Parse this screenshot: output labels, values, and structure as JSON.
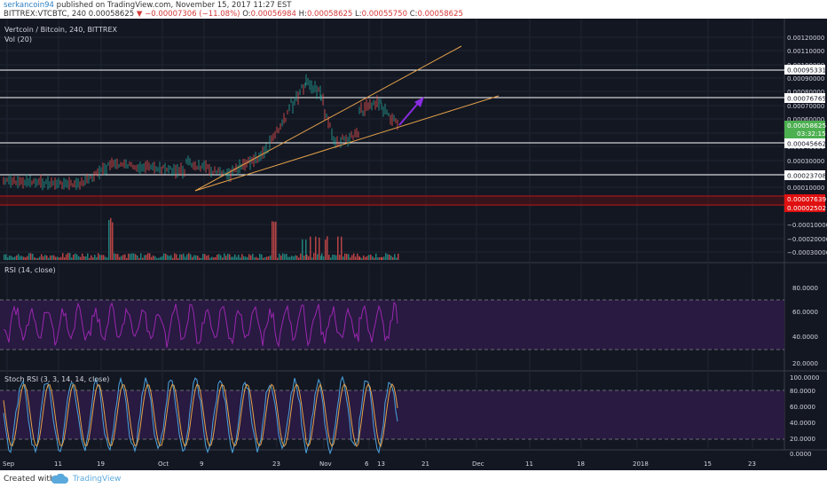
{
  "header": {
    "user": "serkancoin94",
    "published": "published on TradingView.com, November 15, 2017 11:27 EST",
    "symbol": "BITTREX:VTCBTC, 240",
    "price": "0.00058625",
    "change": "−0.00007306 (−11.08%)",
    "o_label": "O:",
    "o_value": "0.00056984",
    "h_label": "H:",
    "h_value": "0.00058625",
    "l_label": "L:",
    "l_value": "0.00055750",
    "c_label": "C:",
    "c_value": "0.00058625"
  },
  "chart_title": "Vertcoin / Bitcoin, 240, BITTREX",
  "vol_label": "Vol (20)",
  "rsi_label": "RSI (14, close)",
  "stoch_label": "Stoch RSI (3, 3, 14, 14, close)",
  "price_axis": [
    "0.00120000",
    "0.00110000",
    "0.00100000",
    "0.00090000",
    "0.00080000",
    "0.00070000",
    "0.00060000",
    "0.00050000",
    "0.00040000",
    "0.00030000",
    "0.00020000",
    "0.00010000",
    "−0.00010000",
    "−0.00020000",
    "−0.00030000"
  ],
  "level_labels": [
    "0.00095331",
    "0.00076765",
    "0.00045662",
    "0.00023708"
  ],
  "current_price": "0.00058625",
  "countdown": "03:32:15",
  "red_labels": [
    "0.00007639",
    "0.00002502"
  ],
  "rsi_axis": [
    "80.0000",
    "60.0000",
    "40.0000",
    "20.0000"
  ],
  "stoch_axis": [
    "100.0000",
    "80.0000",
    "60.0000",
    "40.0000",
    "20.0000",
    "0.0000"
  ],
  "time_axis": [
    "Sep",
    "11",
    "19",
    "Oct",
    "9",
    "23",
    "Nov",
    "6",
    "13",
    "21",
    "Dec",
    "11",
    "18",
    "2018",
    "15",
    "23"
  ],
  "footer": {
    "created": "Created with",
    "tv": "TradingView"
  },
  "colors": {
    "background": "#131722",
    "trendline": "#e6a24a",
    "arrow": "#8a2be2",
    "rsi": "#9c27b0",
    "rsi_band": "#3b1f5e",
    "level_line": "#ffffff",
    "red_zone": "#d11a1a",
    "price_badge": "#4caf50"
  }
}
